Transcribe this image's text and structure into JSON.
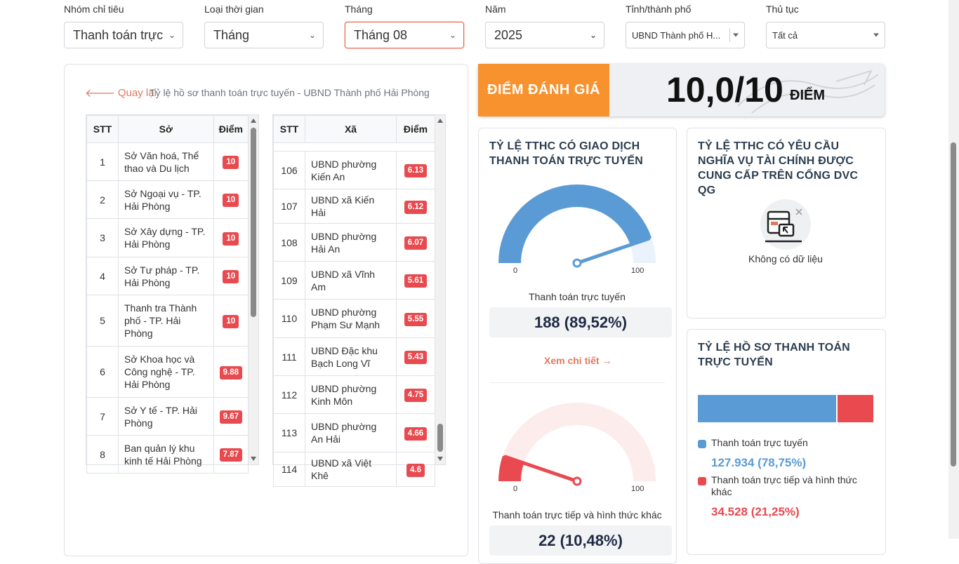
{
  "filters": [
    {
      "label": "Nhóm chỉ tiêu",
      "value": "Thanh toán trực"
    },
    {
      "label": "Loại thời gian",
      "value": "Tháng"
    },
    {
      "label": "Tháng",
      "value": "Tháng 08"
    },
    {
      "label": "Năm",
      "value": "2025"
    },
    {
      "label": "Tỉnh/thành phố",
      "value": "UBND Thành phố H..."
    },
    {
      "label": "Thủ tục",
      "value": "Tất cả"
    }
  ],
  "nav": {
    "back": "Quay lại",
    "breadcrumb": "Tỷ lệ hồ sơ thanh toán trực tuyến - UBND Thành phố Hải Phòng"
  },
  "left_table": {
    "headers": [
      "STT",
      "Sở",
      "Điểm"
    ],
    "rows": [
      {
        "stt": "1",
        "name": "Sở Văn hoá, Thể thao và Du lịch",
        "score": "10"
      },
      {
        "stt": "2",
        "name": "Sở Ngoại vụ - TP. Hải Phòng",
        "score": "10"
      },
      {
        "stt": "3",
        "name": "Sở Xây dựng - TP. Hải Phòng",
        "score": "10"
      },
      {
        "stt": "4",
        "name": "Sở Tư pháp - TP. Hải Phòng",
        "score": "10"
      },
      {
        "stt": "5",
        "name": "Thanh tra Thành phố - TP. Hải Phòng",
        "score": "10"
      },
      {
        "stt": "6",
        "name": "Sở Khoa học và Công nghệ - TP. Hải Phòng",
        "score": "9.88"
      },
      {
        "stt": "7",
        "name": "Sở Y tế - TP. Hải Phòng",
        "score": "9.67"
      },
      {
        "stt": "8",
        "name": "Ban quản lý khu kinh tế Hải Phòng",
        "score": "7.87"
      }
    ]
  },
  "right_table": {
    "headers": [
      "STT",
      "Xã",
      "Điểm"
    ],
    "rows": [
      {
        "stt": "106",
        "name": "UBND phường Kiến An",
        "score": "6.13"
      },
      {
        "stt": "107",
        "name": "UBND xã Kiến Hải",
        "score": "6.12"
      },
      {
        "stt": "108",
        "name": "UBND phường Hải An",
        "score": "6.07"
      },
      {
        "stt": "109",
        "name": "UBND xã Vĩnh Am",
        "score": "5.61"
      },
      {
        "stt": "110",
        "name": "UBND phường Phạm Sư Mạnh",
        "score": "5.55"
      },
      {
        "stt": "111",
        "name": "UBND Đặc khu Bạch Long Vĩ",
        "score": "5.43"
      },
      {
        "stt": "112",
        "name": "UBND phường Kinh Môn",
        "score": "4.75"
      },
      {
        "stt": "113",
        "name": "UBND phường An Hải",
        "score": "4.66"
      },
      {
        "stt": "114",
        "name": "UBND xã Việt Khê",
        "score": "4.6"
      }
    ]
  },
  "score": {
    "label": "ĐIỂM ĐÁNH GIÁ",
    "value": "10,0/10",
    "unit": "ĐIỂM"
  },
  "card1": {
    "title": "TỶ LỆ TTHC CÓ GIAO DỊCH THANH TOÁN TRỰC TUYẾN",
    "gauge1": {
      "min": "0",
      "max": "100",
      "percent": 89.52,
      "label": "Thanh toán trực tuyến",
      "value": "188 (89,52%)",
      "color": "#5b9bd5",
      "track": "#eaf3fb"
    },
    "detail": "Xem chi tiết →",
    "gauge2": {
      "min": "0",
      "max": "100",
      "percent": 10.48,
      "label": "Thanh toán trực tiếp và hình thức khác",
      "value": "22 (10,48%)",
      "color": "#e84a4f",
      "track": "#fdecec"
    }
  },
  "card2": {
    "title": "TỶ LỆ TTHC CÓ YÊU CẦU NGHĨA VỤ TÀI CHÍNH ĐƯỢC CUNG CẤP TRÊN CỔNG DVC QG",
    "empty": "Không có dữ liệu"
  },
  "card3": {
    "title": "TỶ LỆ HỒ SƠ THANH TOÁN TRỰC TUYẾN",
    "online": {
      "label": "Thanh toán trực tuyến",
      "value": "127.934 (78,75%)",
      "percent": 78.75,
      "color": "#5b9bd5"
    },
    "offline": {
      "label": "Thanh toán trực tiếp và hình thức khác",
      "value": "34.528 (21,25%)",
      "percent": 21.25,
      "color": "#e84a4f"
    }
  }
}
